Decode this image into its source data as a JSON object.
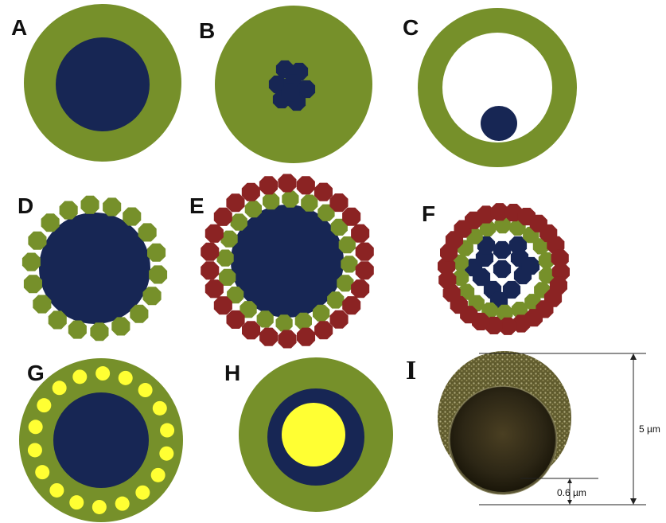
{
  "panels": [
    {
      "label": "A"
    },
    {
      "label": "B"
    },
    {
      "label": "C"
    },
    {
      "label": "D"
    },
    {
      "label": "E"
    },
    {
      "label": "F"
    },
    {
      "label": "G"
    },
    {
      "label": "H"
    },
    {
      "label": "I"
    }
  ],
  "annotations": {
    "outer_dimension": "5 µm",
    "shell_thickness": "0.6 µm"
  },
  "colors": {
    "shell_green": "#76902a",
    "core_navy": "#172654",
    "particle_red": "#8b2323",
    "particle_yellow": "#ffff33",
    "micrograph_shell": "#6f6a3a",
    "micrograph_core": "#2a2414"
  }
}
